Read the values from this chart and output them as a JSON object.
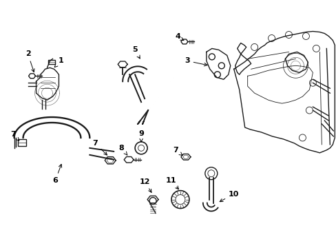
{
  "bg_color": "#ffffff",
  "line_color": "#1a1a1a",
  "fig_width": 4.89,
  "fig_height": 3.6,
  "dpi": 100,
  "font_size": 8.0,
  "lw_main": 1.0,
  "lw_tube": 1.4,
  "lw_thin": 0.6
}
